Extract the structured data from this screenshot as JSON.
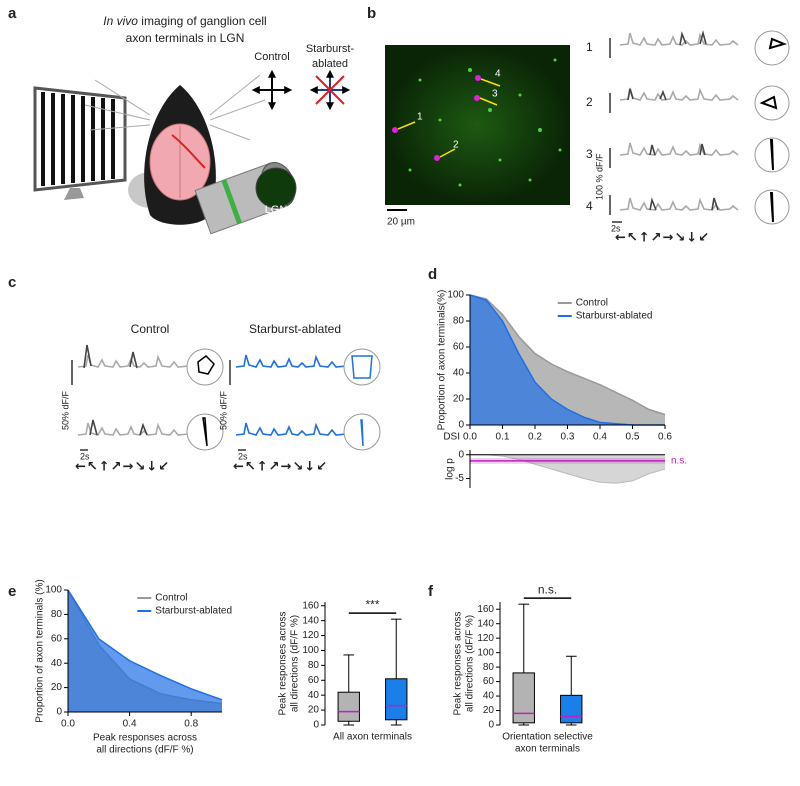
{
  "panels": [
    "a",
    "b",
    "c",
    "d",
    "e",
    "f"
  ],
  "panel_a": {
    "title_italic": "In vivo",
    "title_rest": " imaging of ganglion cell",
    "title_line2": "axon terminals in LGN",
    "control": "Control",
    "ablated": [
      "Starburst-",
      "ablated"
    ],
    "lgn": "LGN"
  },
  "panel_b": {
    "scale_bar": "20 µm",
    "cell_labels": [
      "1",
      "2",
      "3",
      "4"
    ],
    "row_labels": [
      "1",
      "2",
      "3",
      "4"
    ],
    "amplitude": "100 % dF/F",
    "time": "2s",
    "directions": "←↖↑↗→↘↓↙"
  },
  "panel_c": {
    "control": "Control",
    "ablated": "Starburst-ablated",
    "amplitude": "50% dF/F",
    "time": "2s",
    "directions": "←↖↑↗→↘↓↙"
  },
  "chart_data": [
    {
      "type": "area",
      "xlabel": [
        "DSI"
      ],
      "ylabel": [
        "Proportion of axon terminals(%)"
      ],
      "x": [
        0,
        0.05,
        0.1,
        0.15,
        0.2,
        0.25,
        0.3,
        0.35,
        0.4,
        0.45,
        0.5,
        0.55,
        0.6
      ],
      "series": [
        {
          "name": "Control",
          "color": "#999999",
          "values": [
            100,
            97,
            85,
            68,
            55,
            47,
            41,
            36,
            31,
            25,
            19,
            12,
            8
          ]
        },
        {
          "name": "Starburst-ablated",
          "color": "#1f6fe5",
          "values": [
            100,
            96,
            80,
            55,
            33,
            20,
            12,
            6,
            2,
            1,
            0,
            0,
            0
          ]
        }
      ],
      "xlim": [
        0,
        0.6
      ],
      "xticks": [
        {
          "value": 0,
          "label": "0.0"
        },
        {
          "value": 0.1,
          "label": "0.1"
        },
        {
          "value": 0.2,
          "label": "0.2"
        },
        {
          "value": 0.3,
          "label": "0.3"
        },
        {
          "value": 0.4,
          "label": "0.4"
        },
        {
          "value": 0.5,
          "label": "0.5"
        },
        {
          "value": 0.6,
          "label": "0.6"
        }
      ],
      "ylim": [
        0,
        100
      ],
      "yticks": [
        0,
        20,
        40,
        60,
        80,
        100
      ],
      "legend": "upper right"
    },
    {
      "type": "line",
      "ylabel": [
        "log p"
      ],
      "x": [
        0,
        0.05,
        0.1,
        0.15,
        0.2,
        0.25,
        0.3,
        0.35,
        0.4,
        0.45,
        0.5,
        0.55,
        0.6
      ],
      "values": [
        0,
        0,
        -0.3,
        -1,
        -2,
        -3,
        -4,
        -5,
        -5.8,
        -6,
        -5.5,
        -4,
        -3
      ],
      "color": "#bbbbbb",
      "threshold": -1.3,
      "threshold_color": "#c020c0",
      "threshold_label": "n.s.",
      "xlim": [
        0,
        0.6
      ],
      "ylim": [
        -7,
        1
      ],
      "yticks": [
        -5,
        0
      ]
    },
    {
      "type": "area",
      "xlabel": [
        "Peak responses across",
        "all directions (dF/F %)"
      ],
      "ylabel": [
        "Proportion of axon terminals (%)"
      ],
      "x": [
        0,
        0.2,
        0.4,
        0.6,
        0.8,
        1.0
      ],
      "series": [
        {
          "name": "Control",
          "color": "#999999",
          "values": [
            100,
            55,
            27,
            15,
            10,
            7
          ]
        },
        {
          "name": "Starburst-ablated",
          "color": "#1f6fe5",
          "values": [
            100,
            60,
            42,
            30,
            19,
            10
          ]
        }
      ],
      "xlim": [
        0,
        1
      ],
      "xticks": [
        {
          "value": 0,
          "label": "0.0"
        },
        {
          "value": 0.4,
          "label": "0.4"
        },
        {
          "value": 0.8,
          "label": "0.8"
        }
      ],
      "ylim": [
        0,
        100
      ],
      "yticks": [
        0,
        20,
        40,
        60,
        80,
        100
      ],
      "legend": "upper right"
    },
    {
      "type": "box",
      "xlabel": [
        "All axon terminals"
      ],
      "ylabel": [
        "Peak responses across",
        "all directions (dF/F %)"
      ],
      "significance": "***",
      "boxes": [
        {
          "color": "#b3b3b3",
          "low": 0,
          "q1": 5,
          "median": 18,
          "q3": 44,
          "high": 94
        },
        {
          "color": "#1a7fe8",
          "low": 0,
          "q1": 7,
          "median": 26,
          "q3": 62,
          "high": 142
        }
      ],
      "median_color": "#c020c0",
      "ylim": [
        0,
        165
      ],
      "yticks": [
        0,
        20,
        40,
        60,
        80,
        100,
        120,
        140,
        160
      ]
    },
    {
      "type": "box",
      "xlabel": [
        "Orientation selective",
        "axon terminals"
      ],
      "ylabel": [
        "Peak responses across",
        "all directions (dF/F %)"
      ],
      "significance": "n.s.",
      "boxes": [
        {
          "color": "#b3b3b3",
          "low": 0,
          "q1": 3,
          "median": 16,
          "q3": 72,
          "high": 167
        },
        {
          "color": "#1a7fe8",
          "low": 0,
          "q1": 3,
          "median": 12,
          "q3": 41,
          "high": 95
        }
      ],
      "median_color": "#c020c0",
      "ylim": [
        0,
        170
      ],
      "yticks": [
        0,
        20,
        40,
        60,
        80,
        100,
        120,
        140,
        160
      ]
    }
  ]
}
